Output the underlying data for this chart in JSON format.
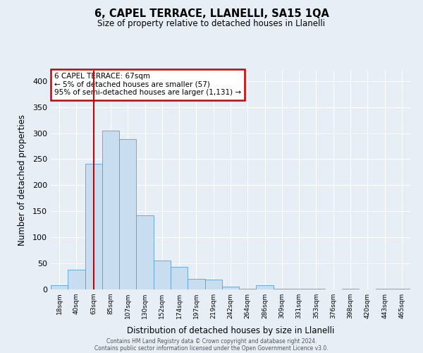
{
  "title": "6, CAPEL TERRACE, LLANELLI, SA15 1QA",
  "subtitle": "Size of property relative to detached houses in Llanelli",
  "xlabel": "Distribution of detached houses by size in Llanelli",
  "ylabel": "Number of detached properties",
  "bar_labels": [
    "18sqm",
    "40sqm",
    "63sqm",
    "85sqm",
    "107sqm",
    "130sqm",
    "152sqm",
    "174sqm",
    "197sqm",
    "219sqm",
    "242sqm",
    "264sqm",
    "286sqm",
    "309sqm",
    "331sqm",
    "353sqm",
    "376sqm",
    "398sqm",
    "420sqm",
    "443sqm",
    "465sqm"
  ],
  "bar_heights": [
    8,
    38,
    241,
    305,
    289,
    142,
    55,
    43,
    20,
    19,
    5,
    2,
    8,
    2,
    1,
    1,
    0,
    1,
    0,
    1,
    2
  ],
  "bar_color": "#c8ddf0",
  "bar_edge_color": "#5b9fd4",
  "vline_x": 2,
  "vline_color": "#cc0000",
  "annotation_title": "6 CAPEL TERRACE: 67sqm",
  "annotation_line1": "← 5% of detached houses are smaller (57)",
  "annotation_line2": "95% of semi-detached houses are larger (1,131) →",
  "annotation_box_color": "#cc0000",
  "ylim": [
    0,
    420
  ],
  "yticks": [
    0,
    50,
    100,
    150,
    200,
    250,
    300,
    350,
    400
  ],
  "footer1": "Contains HM Land Registry data © Crown copyright and database right 2024.",
  "footer2": "Contains public sector information licensed under the Open Government Licence v3.0.",
  "bg_color": "#e8eef6",
  "plot_bg_color": "#e8eef6"
}
